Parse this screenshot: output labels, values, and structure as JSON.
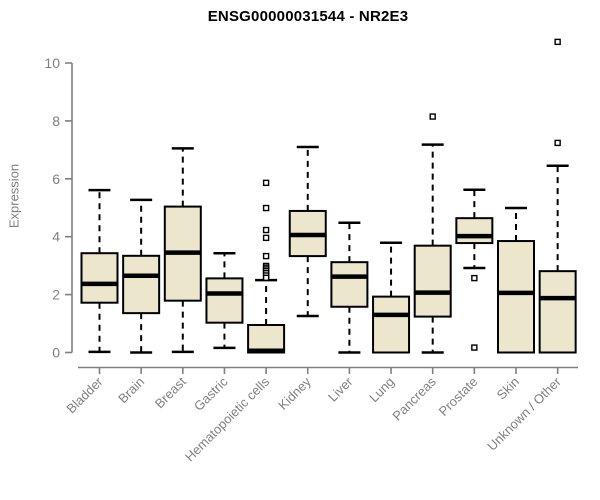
{
  "title": "ENSG00000031544 - NR2E3",
  "chart_data": {
    "type": "boxplot",
    "title": "ENSG00000031544 - NR2E3",
    "xlabel": "",
    "ylabel": "Expression",
    "ylim": [
      0,
      10.8
    ],
    "yticks": [
      0,
      2,
      4,
      6,
      8,
      10
    ],
    "grid": false,
    "legend": null,
    "categories": [
      "Bladder",
      "Brain",
      "Breast",
      "Gastric",
      "Hematopoietic cells",
      "Kidney",
      "Liver",
      "Lung",
      "Pancreas",
      "Prostate",
      "Skin",
      "Unknown / Other"
    ],
    "series": [
      {
        "category": "Bladder",
        "low": 0.02,
        "q1": 1.72,
        "median": 2.37,
        "q3": 3.43,
        "high": 5.61,
        "outliers": []
      },
      {
        "category": "Brain",
        "low": 0.0,
        "q1": 1.36,
        "median": 2.65,
        "q3": 3.34,
        "high": 5.27,
        "outliers": []
      },
      {
        "category": "Breast",
        "low": 0.02,
        "q1": 1.79,
        "median": 3.45,
        "q3": 5.04,
        "high": 7.05,
        "outliers": []
      },
      {
        "category": "Gastric",
        "low": 0.16,
        "q1": 1.03,
        "median": 2.04,
        "q3": 2.56,
        "high": 3.43,
        "outliers": []
      },
      {
        "category": "Hematopoietic cells",
        "low": 0.0,
        "q1": 0.0,
        "median": 0.06,
        "q3": 0.95,
        "high": 2.5,
        "outliers": [
          5.86,
          4.99,
          4.23,
          3.96,
          3.33,
          2.99,
          2.93,
          2.87,
          2.81,
          2.74,
          2.66,
          2.58
        ]
      },
      {
        "category": "Kidney",
        "low": 1.26,
        "q1": 3.33,
        "median": 4.06,
        "q3": 4.89,
        "high": 7.1,
        "outliers": []
      },
      {
        "category": "Liver",
        "low": 0.0,
        "q1": 1.58,
        "median": 2.62,
        "q3": 3.12,
        "high": 4.48,
        "outliers": []
      },
      {
        "category": "Lung",
        "low": 0.0,
        "q1": 0.0,
        "median": 1.3,
        "q3": 1.93,
        "high": 3.79,
        "outliers": []
      },
      {
        "category": "Pancreas",
        "low": 0.0,
        "q1": 1.24,
        "median": 2.07,
        "q3": 3.69,
        "high": 7.18,
        "outliers": [
          8.15
        ]
      },
      {
        "category": "Prostate",
        "low": 2.92,
        "q1": 3.78,
        "median": 4.02,
        "q3": 4.64,
        "high": 5.62,
        "outliers": [
          2.57,
          0.17
        ]
      },
      {
        "category": "Skin",
        "low": 0.0,
        "q1": 0.0,
        "median": 2.06,
        "q3": 3.85,
        "high": 4.99,
        "outliers": []
      },
      {
        "category": "Unknown / Other",
        "low": 0.0,
        "q1": 0.0,
        "median": 1.88,
        "q3": 2.81,
        "high": 6.45,
        "outliers": [
          10.73,
          7.24
        ]
      }
    ],
    "colors": {
      "box_fill": "#ece6cd",
      "box_border": "#000000",
      "median": "#000000",
      "whisker": "#000000",
      "outlier_stroke": "#000000",
      "outlier_fill": "#ffffff",
      "axis": "#808080",
      "tick_label": "#808080",
      "title": "#000000",
      "background": "#ffffff"
    }
  }
}
